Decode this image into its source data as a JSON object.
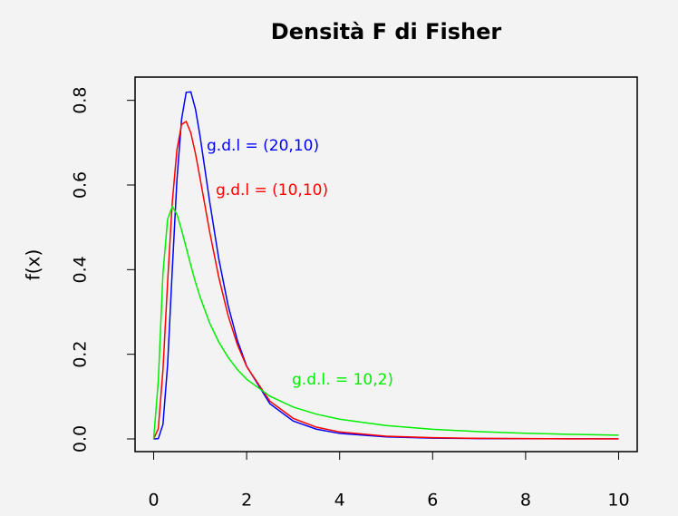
{
  "chart_data": {
    "type": "line",
    "title": "Densità F di Fisher",
    "ylabel": "f(x)",
    "x": [
      0,
      0.1,
      0.2,
      0.3,
      0.4,
      0.5,
      0.6,
      0.7,
      0.8,
      0.9,
      1,
      1.2,
      1.4,
      1.6,
      1.8,
      2,
      2.5,
      3,
      3.5,
      4,
      5,
      6,
      7,
      8,
      9,
      10
    ],
    "series": [
      {
        "name": "g.d.l = (20,10)",
        "color": "#0000ff",
        "values": [
          0,
          0.0007,
          0.034,
          0.175,
          0.398,
          0.611,
          0.755,
          0.819,
          0.82,
          0.779,
          0.714,
          0.564,
          0.426,
          0.316,
          0.233,
          0.172,
          0.0832,
          0.0425,
          0.023,
          0.013,
          0.0048,
          0.002,
          0.0009,
          0.0005,
          0.0003,
          0.0002
        ]
      },
      {
        "name": "g.d.l = (10,10)",
        "color": "#ff0000",
        "values": [
          0,
          0.024,
          0.163,
          0.37,
          0.558,
          0.683,
          0.743,
          0.75,
          0.723,
          0.674,
          0.615,
          0.492,
          0.382,
          0.292,
          0.223,
          0.171,
          0.0892,
          0.0487,
          0.0278,
          0.0165,
          0.0065,
          0.0029,
          0.0014,
          0.0007,
          0.0004,
          0.0002
        ]
      },
      {
        "name": "g.d.l. = 10,2)",
        "color": "#00ee00",
        "values": [
          0,
          0.137,
          0.391,
          0.519,
          0.549,
          0.531,
          0.494,
          0.452,
          0.41,
          0.37,
          0.335,
          0.275,
          0.229,
          0.193,
          0.164,
          0.141,
          0.101,
          0.0754,
          0.0585,
          0.0466,
          0.0316,
          0.0228,
          0.0172,
          0.0135,
          0.0108,
          0.0089
        ]
      }
    ],
    "xlim": [
      -0.4,
      10.4
    ],
    "ylim": [
      -0.03,
      0.855
    ],
    "xticks": [
      0,
      2,
      4,
      6,
      8,
      10
    ],
    "yticks": [
      {
        "value": 0,
        "label": "0.0"
      },
      {
        "value": 0.2,
        "label": "0.2"
      },
      {
        "value": 0.4,
        "label": "0.4"
      },
      {
        "value": 0.6,
        "label": "0.6"
      },
      {
        "value": 0.8,
        "label": "0.8"
      }
    ]
  }
}
